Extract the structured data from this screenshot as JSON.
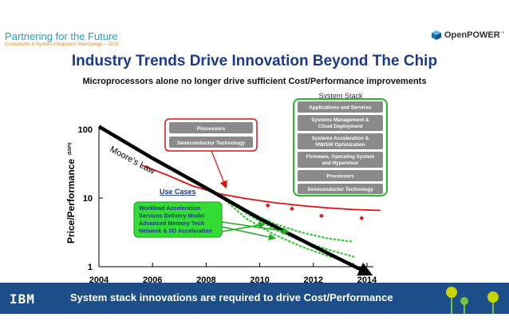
{
  "header": {
    "title": "Partnering for the Future",
    "subtitle": "Consultants & System Integrators Interchange – 2015",
    "brand": "OpenPOWER",
    "brand_tm": "™"
  },
  "slide": {
    "title": "Industry Trends Drive Innovation Beyond The Chip",
    "subtitle": "Microprocessors alone no longer drive sufficient Cost/Performance improvements"
  },
  "footer": {
    "logo": "IBM",
    "text": "System stack innovations are required to drive Cost/Performance"
  },
  "colors": {
    "title_blue": "#1d3a8a",
    "header_cyan": "#1aa3c8",
    "header_orange": "#e58a2b",
    "red": "#e01010",
    "green": "#33cc33",
    "stack_gray": "#8a8a8a",
    "footer_blue": "#1c4f8a"
  },
  "chart_data": {
    "type": "line",
    "yscale": "log",
    "ylabel": "Price/Performance",
    "ylabel_unit": "($/SPI)",
    "xlim": [
      2004,
      2014
    ],
    "ylim": [
      1,
      100
    ],
    "x_ticks": [
      "2004",
      "2006",
      "2008",
      "2010",
      "2012",
      "2014"
    ],
    "y_ticks": [
      "1",
      "10",
      "100"
    ],
    "series": [
      {
        "name": "Moore's Law",
        "color": "#000000",
        "points": [
          [
            2004,
            110
          ],
          [
            2006,
            38
          ],
          [
            2008,
            14
          ],
          [
            2010,
            5
          ],
          [
            2012,
            2
          ],
          [
            2014,
            0.82
          ]
        ]
      },
      {
        "color": "#e01010",
        "points": [
          [
            2005.6,
            30
          ],
          [
            2006.5,
            22
          ],
          [
            2007.5,
            15
          ],
          [
            2008.5,
            11.5
          ],
          [
            2009.5,
            9.8
          ],
          [
            2010.5,
            8.6
          ],
          [
            2011.5,
            7.8
          ],
          [
            2012.5,
            7.2
          ],
          [
            2013.5,
            6.8
          ],
          [
            2014.5,
            6.6
          ]
        ]
      },
      {
        "color": "#e01010",
        "style": "markers",
        "points": [
          [
            2010.3,
            7.8
          ],
          [
            2011.2,
            7
          ],
          [
            2012.3,
            5.5
          ],
          [
            2013.8,
            5.1
          ]
        ]
      },
      {
        "color": "#33cc33",
        "style": "dotted",
        "points": [
          [
            2008.5,
            11
          ],
          [
            2009.5,
            6
          ],
          [
            2010.5,
            3.6
          ],
          [
            2011.5,
            2.4
          ],
          [
            2012.5,
            1.8
          ],
          [
            2013.5,
            1.4
          ]
        ]
      },
      {
        "color": "#33cc33",
        "style": "dotted",
        "points": [
          [
            2008.5,
            11
          ],
          [
            2009.5,
            5
          ],
          [
            2010.5,
            3
          ],
          [
            2011.5,
            2
          ],
          [
            2012.5,
            1.45
          ],
          [
            2013.5,
            1.1
          ]
        ]
      },
      {
        "color": "#33cc33",
        "style": "dotted",
        "points": [
          [
            2008.5,
            11
          ],
          [
            2009.5,
            6.6
          ],
          [
            2010.5,
            4.3
          ],
          [
            2011.5,
            3.2
          ],
          [
            2012.5,
            2.6
          ],
          [
            2013.5,
            2.3
          ]
        ]
      }
    ],
    "annotations": {
      "moores_law": "Moore’s Law",
      "use_cases_title": "Use Cases",
      "use_cases": [
        "Workload Acceleration",
        "Services Delivery Model",
        "Advanced Memory Tech",
        "Network & I/O Acceleration"
      ],
      "processor_box": [
        "Processors",
        "Semiconductor Technology"
      ],
      "system_stack_title": "System Stack",
      "system_stack": [
        "Applications and Services",
        "Systems Management & Cloud Deployment",
        "Systems Acceleration & HW/SW Optimization",
        "Firmware, Operating System and Hypervisor",
        "Processors",
        "Semiconductor Technology"
      ]
    }
  }
}
